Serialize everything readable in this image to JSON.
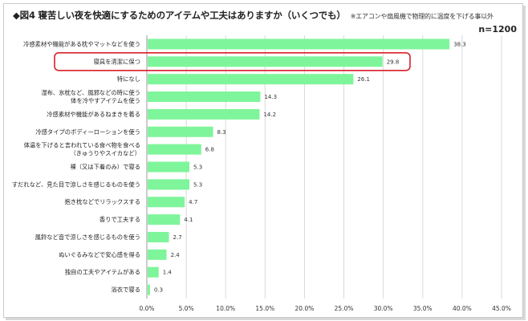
{
  "title": {
    "main": "◆図4 寝苦しい夜を快適にするためのアイテムや工夫はありますか（いくつでも）",
    "note": "※エアコンや扇風機で物理的に温度を下げる事以外",
    "sample": "n=1200"
  },
  "colors": {
    "bar": "#7ef59a",
    "highlight": "#d9202a",
    "grid": "#d9d9d9",
    "axis": "#9a9a9a"
  },
  "chart_data": {
    "type": "bar",
    "orientation": "horizontal",
    "categories": [
      [
        "冷感素材や機能がある枕やマットなどを使う"
      ],
      [
        "寝具を清潔に保つ"
      ],
      [
        "特になし"
      ],
      [
        "湿布、氷枕など、風邪などの時に使う",
        "体を冷やすアイテムを使う"
      ],
      [
        "冷感素材や機能があるねまきを着る"
      ],
      [
        "冷感タイプのボディーローションを使う"
      ],
      [
        "体温を下げると言われている食べ物を食べる",
        "（きゅうりやスイカなど）"
      ],
      [
        "裸（又は下着のみ）で寝る"
      ],
      [
        "すだれなど、見た目で涼しさを感じるものを使う"
      ],
      [
        "抱き枕などでリラックスする"
      ],
      [
        "香りで工夫する"
      ],
      [
        "風鈴など音で涼しさを感じるものを使う"
      ],
      [
        "ぬいぐるみなどで安心感を得る"
      ],
      [
        "独自の工夫やアイテムがある"
      ],
      [
        "浴衣で寝る"
      ]
    ],
    "values": [
      38.3,
      29.8,
      26.1,
      14.3,
      14.2,
      8.3,
      6.8,
      5.3,
      5.3,
      4.7,
      4.1,
      2.7,
      2.4,
      1.4,
      0.3
    ],
    "value_labels": [
      "38.3",
      "29.8",
      "26.1",
      "14.3",
      "14.2",
      "8.3",
      "6.8",
      "5.3",
      "5.3",
      "4.7",
      "4.1",
      "2.7",
      "2.4",
      "1.4",
      "0.3"
    ],
    "highlighted_index": 1,
    "xlim": [
      0,
      45
    ],
    "xticks": [
      "0.0%",
      "5.0%",
      "10.0%",
      "15.0%",
      "20.0%",
      "25.0%",
      "30.0%",
      "35.0%",
      "40.0%",
      "45.0%"
    ],
    "xtick_values": [
      0,
      5,
      10,
      15,
      20,
      25,
      30,
      35,
      40,
      45
    ],
    "grid": "vertical"
  }
}
